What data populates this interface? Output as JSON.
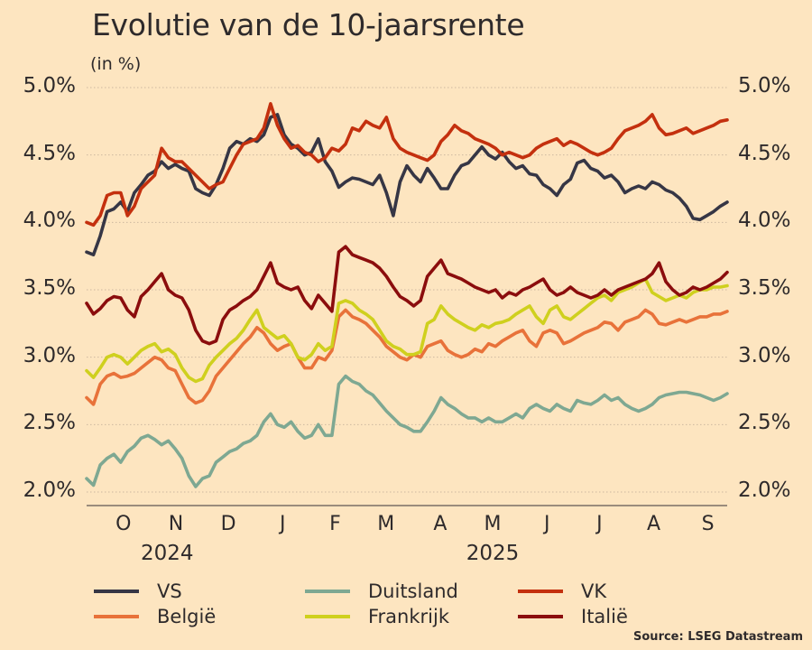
{
  "chart_data": {
    "type": "line",
    "title": "Evolutie van de 10-jaarsrente",
    "subtitle": "(in %)",
    "xlabel": "",
    "ylabel": "(in %)",
    "x_start": "2024-09-25",
    "x_end": "2025-09-26",
    "sampling": "evenly spaced points between x_start and x_end",
    "ylim": [
      2.0,
      5.0
    ],
    "yticks": [
      "2.0%",
      "2.5%",
      "3.0%",
      "3.5%",
      "4.0%",
      "4.5%",
      "5.0%"
    ],
    "ytick_values": [
      2.0,
      2.5,
      3.0,
      3.5,
      4.0,
      4.5,
      5.0
    ],
    "xticks": [
      {
        "label": "O",
        "date": "2024-10-16"
      },
      {
        "label": "N",
        "date": "2024-11-15"
      },
      {
        "label": "D",
        "date": "2024-12-15"
      },
      {
        "label": "J",
        "date": "2025-01-15"
      },
      {
        "label": "F",
        "date": "2025-02-14"
      },
      {
        "label": "M",
        "date": "2025-03-15"
      },
      {
        "label": "A",
        "date": "2025-04-15"
      },
      {
        "label": "M",
        "date": "2025-05-15"
      },
      {
        "label": "J",
        "date": "2025-06-15"
      },
      {
        "label": "J",
        "date": "2025-07-15"
      },
      {
        "label": "A",
        "date": "2025-08-15"
      },
      {
        "label": "S",
        "date": "2025-09-15"
      }
    ],
    "year_labels": [
      {
        "label": "2024",
        "date": "2024-11-10"
      },
      {
        "label": "2025",
        "date": "2025-05-15"
      }
    ],
    "grid": true,
    "legend_position": "bottom",
    "series": [
      {
        "name": "VS",
        "color": "#363645",
        "values": [
          3.78,
          3.76,
          3.9,
          4.08,
          4.1,
          4.15,
          4.08,
          4.22,
          4.28,
          4.35,
          4.38,
          4.45,
          4.4,
          4.43,
          4.4,
          4.38,
          4.25,
          4.22,
          4.2,
          4.28,
          4.4,
          4.55,
          4.6,
          4.58,
          4.62,
          4.6,
          4.65,
          4.78,
          4.8,
          4.65,
          4.58,
          4.55,
          4.5,
          4.52,
          4.62,
          4.45,
          4.38,
          4.26,
          4.3,
          4.33,
          4.32,
          4.3,
          4.28,
          4.35,
          4.22,
          4.05,
          4.3,
          4.42,
          4.35,
          4.3,
          4.4,
          4.33,
          4.25,
          4.25,
          4.35,
          4.42,
          4.44,
          4.5,
          4.56,
          4.5,
          4.47,
          4.52,
          4.45,
          4.4,
          4.42,
          4.36,
          4.35,
          4.28,
          4.25,
          4.2,
          4.28,
          4.32,
          4.44,
          4.46,
          4.4,
          4.38,
          4.33,
          4.35,
          4.3,
          4.22,
          4.25,
          4.27,
          4.25,
          4.3,
          4.28,
          4.24,
          4.22,
          4.18,
          4.12,
          4.03,
          4.02,
          4.05,
          4.08,
          4.12,
          4.15
        ]
      },
      {
        "name": "Duitsland",
        "color": "#7ea892",
        "values": [
          2.1,
          2.05,
          2.2,
          2.25,
          2.28,
          2.22,
          2.3,
          2.34,
          2.4,
          2.42,
          2.39,
          2.35,
          2.38,
          2.32,
          2.25,
          2.12,
          2.04,
          2.1,
          2.12,
          2.22,
          2.26,
          2.3,
          2.32,
          2.36,
          2.38,
          2.42,
          2.52,
          2.58,
          2.5,
          2.48,
          2.52,
          2.45,
          2.4,
          2.42,
          2.5,
          2.42,
          2.42,
          2.8,
          2.86,
          2.82,
          2.8,
          2.75,
          2.72,
          2.66,
          2.6,
          2.55,
          2.5,
          2.48,
          2.45,
          2.45,
          2.52,
          2.6,
          2.7,
          2.65,
          2.62,
          2.58,
          2.55,
          2.55,
          2.52,
          2.55,
          2.52,
          2.52,
          2.55,
          2.58,
          2.55,
          2.62,
          2.65,
          2.62,
          2.6,
          2.65,
          2.62,
          2.6,
          2.68,
          2.66,
          2.65,
          2.68,
          2.72,
          2.68,
          2.7,
          2.65,
          2.62,
          2.6,
          2.62,
          2.65,
          2.7,
          2.72,
          2.73,
          2.74,
          2.74,
          2.73,
          2.72,
          2.7,
          2.68,
          2.7,
          2.73
        ]
      },
      {
        "name": "VK",
        "color": "#c4300e",
        "values": [
          4.0,
          3.98,
          4.05,
          4.2,
          4.22,
          4.22,
          4.05,
          4.12,
          4.25,
          4.3,
          4.35,
          4.55,
          4.48,
          4.45,
          4.45,
          4.4,
          4.35,
          4.3,
          4.25,
          4.28,
          4.3,
          4.4,
          4.5,
          4.58,
          4.6,
          4.62,
          4.7,
          4.88,
          4.72,
          4.62,
          4.55,
          4.57,
          4.52,
          4.5,
          4.45,
          4.48,
          4.55,
          4.53,
          4.58,
          4.7,
          4.68,
          4.75,
          4.72,
          4.7,
          4.78,
          4.62,
          4.55,
          4.52,
          4.5,
          4.48,
          4.46,
          4.5,
          4.6,
          4.65,
          4.72,
          4.68,
          4.66,
          4.62,
          4.6,
          4.58,
          4.55,
          4.5,
          4.52,
          4.5,
          4.48,
          4.5,
          4.55,
          4.58,
          4.6,
          4.62,
          4.57,
          4.6,
          4.58,
          4.55,
          4.52,
          4.5,
          4.52,
          4.55,
          4.62,
          4.68,
          4.7,
          4.72,
          4.75,
          4.8,
          4.7,
          4.65,
          4.66,
          4.68,
          4.7,
          4.66,
          4.68,
          4.7,
          4.72,
          4.75,
          4.76
        ]
      },
      {
        "name": "België",
        "color": "#e8723a",
        "values": [
          2.7,
          2.65,
          2.8,
          2.86,
          2.88,
          2.85,
          2.86,
          2.88,
          2.92,
          2.96,
          3.0,
          2.98,
          2.92,
          2.9,
          2.8,
          2.7,
          2.66,
          2.68,
          2.75,
          2.86,
          2.92,
          2.98,
          3.04,
          3.1,
          3.15,
          3.22,
          3.18,
          3.1,
          3.05,
          3.08,
          3.1,
          3.0,
          2.92,
          2.92,
          3.0,
          2.98,
          3.05,
          3.3,
          3.35,
          3.3,
          3.28,
          3.25,
          3.2,
          3.15,
          3.08,
          3.04,
          3.0,
          2.98,
          3.02,
          3.0,
          3.08,
          3.1,
          3.12,
          3.05,
          3.02,
          3.0,
          3.02,
          3.06,
          3.04,
          3.1,
          3.08,
          3.12,
          3.15,
          3.18,
          3.2,
          3.12,
          3.08,
          3.18,
          3.2,
          3.18,
          3.1,
          3.12,
          3.15,
          3.18,
          3.2,
          3.22,
          3.26,
          3.25,
          3.2,
          3.26,
          3.28,
          3.3,
          3.35,
          3.32,
          3.25,
          3.24,
          3.26,
          3.28,
          3.26,
          3.28,
          3.3,
          3.3,
          3.32,
          3.32,
          3.34
        ]
      },
      {
        "name": "Frankrijk",
        "color": "#cfd01e",
        "values": [
          2.9,
          2.85,
          2.92,
          3.0,
          3.02,
          3.0,
          2.95,
          3.0,
          3.05,
          3.08,
          3.1,
          3.04,
          3.06,
          3.02,
          2.92,
          2.85,
          2.82,
          2.84,
          2.94,
          3.0,
          3.05,
          3.1,
          3.14,
          3.2,
          3.28,
          3.35,
          3.22,
          3.18,
          3.14,
          3.16,
          3.1,
          3.0,
          2.98,
          3.02,
          3.1,
          3.05,
          3.08,
          3.4,
          3.42,
          3.4,
          3.35,
          3.32,
          3.28,
          3.2,
          3.12,
          3.08,
          3.06,
          3.02,
          3.02,
          3.04,
          3.25,
          3.28,
          3.38,
          3.32,
          3.28,
          3.25,
          3.22,
          3.2,
          3.24,
          3.22,
          3.25,
          3.26,
          3.28,
          3.32,
          3.35,
          3.38,
          3.3,
          3.25,
          3.35,
          3.38,
          3.3,
          3.28,
          3.32,
          3.36,
          3.4,
          3.44,
          3.46,
          3.42,
          3.48,
          3.5,
          3.52,
          3.55,
          3.58,
          3.48,
          3.45,
          3.42,
          3.44,
          3.46,
          3.44,
          3.48,
          3.5,
          3.5,
          3.52,
          3.52,
          3.53
        ]
      },
      {
        "name": "Italië",
        "color": "#8b0d0d",
        "values": [
          3.4,
          3.32,
          3.36,
          3.42,
          3.45,
          3.44,
          3.35,
          3.3,
          3.45,
          3.5,
          3.56,
          3.62,
          3.5,
          3.46,
          3.44,
          3.35,
          3.2,
          3.12,
          3.1,
          3.12,
          3.28,
          3.35,
          3.38,
          3.42,
          3.45,
          3.5,
          3.6,
          3.7,
          3.55,
          3.52,
          3.5,
          3.52,
          3.42,
          3.36,
          3.46,
          3.4,
          3.34,
          3.78,
          3.82,
          3.76,
          3.74,
          3.72,
          3.7,
          3.66,
          3.6,
          3.52,
          3.45,
          3.42,
          3.38,
          3.42,
          3.6,
          3.66,
          3.72,
          3.62,
          3.6,
          3.58,
          3.55,
          3.52,
          3.5,
          3.48,
          3.5,
          3.44,
          3.48,
          3.46,
          3.5,
          3.52,
          3.55,
          3.58,
          3.5,
          3.46,
          3.48,
          3.52,
          3.48,
          3.46,
          3.44,
          3.46,
          3.5,
          3.46,
          3.5,
          3.52,
          3.54,
          3.56,
          3.58,
          3.62,
          3.7,
          3.56,
          3.5,
          3.46,
          3.48,
          3.52,
          3.5,
          3.52,
          3.55,
          3.58,
          3.63
        ]
      }
    ]
  },
  "legend": [
    {
      "label": "VS",
      "color": "#363645"
    },
    {
      "label": "Duitsland",
      "color": "#7ea892"
    },
    {
      "label": "VK",
      "color": "#c4300e"
    },
    {
      "label": "België",
      "color": "#e8723a"
    },
    {
      "label": "Frankrijk",
      "color": "#cfd01e"
    },
    {
      "label": "Italië",
      "color": "#8b0d0d"
    }
  ],
  "source": "Source: LSEG Datastream"
}
